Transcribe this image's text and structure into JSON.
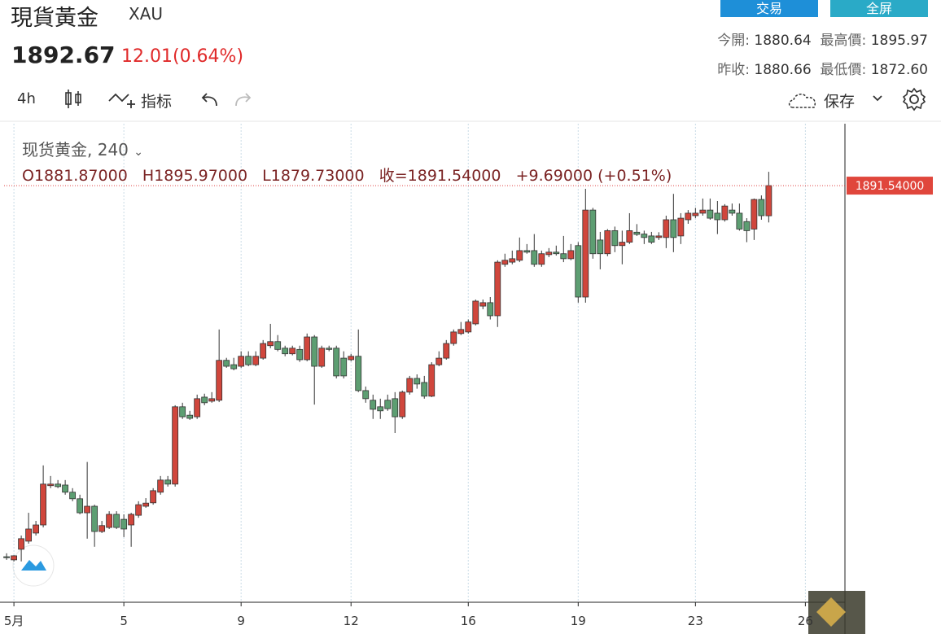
{
  "header": {
    "title": "現貨黃金",
    "symbol": "XAU",
    "price": "1892.67",
    "change": "12.01(0.64%)",
    "trade_button": "交易",
    "fullscreen_button": "全屏"
  },
  "quote": {
    "open_label": "今開:",
    "open": "1880.64",
    "high_label": "最高價:",
    "high": "1895.97",
    "prev_close_label": "昨收:",
    "prev_close": "1880.66",
    "low_label": "最低價:",
    "low": "1872.60"
  },
  "toolbar": {
    "interval": "4h",
    "indicators": "指标",
    "save": "保存"
  },
  "chart_data": {
    "type": "candlestick",
    "title": "现货黄金, 240",
    "legend_open": "O1881.87000",
    "legend_high": "H1895.97000",
    "legend_low": "L1879.73000",
    "legend_close": "收=1891.54000",
    "legend_change": "+9.69000 (+0.51%)",
    "price_label": "1891.54000",
    "up_color": "#d0463c",
    "down_color": "#5d9e72",
    "grid": true,
    "xlim": [
      -0.9,
      114.4
    ],
    "ylim": [
      1757.9,
      1911.4
    ],
    "xticks": [
      {
        "value": 1,
        "label": "5月"
      },
      {
        "value": 16,
        "label": "5"
      },
      {
        "value": 32,
        "label": "9"
      },
      {
        "value": 47,
        "label": "12"
      },
      {
        "value": 63,
        "label": "16"
      },
      {
        "value": 78,
        "label": "19"
      },
      {
        "value": 94,
        "label": "23"
      },
      {
        "value": 109,
        "label": "26"
      }
    ],
    "open": [
      1772.5,
      1771.5,
      1774.9,
      1777.5,
      1780.1,
      1782.7,
      1795.3,
      1795.8,
      1795.5,
      1793.2,
      1791.1,
      1786.6,
      1788.7,
      1780.6,
      1781.9,
      1786.1,
      1784.5,
      1782.7,
      1785.8,
      1788.7,
      1789.8,
      1793.2,
      1797.1,
      1795.8,
      1820.6,
      1817.9,
      1817.4,
      1823.7,
      1822.4,
      1822.7,
      1835.5,
      1834.1,
      1833.6,
      1836.8,
      1834.1,
      1836.2,
      1840.2,
      1841.5,
      1839.4,
      1837.6,
      1839.0,
      1835.7,
      1843.0,
      1833.6,
      1839.4,
      1839.4,
      1836.2,
      1835.7,
      1836.8,
      1825.8,
      1822.7,
      1820.6,
      1822.7,
      1823.2,
      1817.4,
      1825.3,
      1829.7,
      1828.4,
      1824.0,
      1834.1,
      1836.2,
      1840.9,
      1844.1,
      1844.6,
      1847.2,
      1852.9,
      1854.0,
      1849.8,
      1866.3,
      1867.0,
      1867.6,
      1870.7,
      1870.7,
      1866.3,
      1869.4,
      1870.2,
      1869.7,
      1868.1,
      1872.3,
      1855.8,
      1883.7,
      1874.1,
      1869.7,
      1877.1,
      1872.3,
      1873.4,
      1876.6,
      1876.0,
      1875.4,
      1874.9,
      1874.9,
      1880.6,
      1875.4,
      1880.6,
      1881.9,
      1882.7,
      1883.7,
      1882.7,
      1880.6,
      1883.7,
      1882.7,
      1880.0,
      1877.6,
      1887.1,
      1881.87
    ],
    "high": [
      1773.6,
      1773.0,
      1779.3,
      1786.6,
      1784.0,
      1801.8,
      1798.4,
      1797.1,
      1797.1,
      1794.5,
      1792.4,
      1802.9,
      1789.2,
      1784.0,
      1787.1,
      1787.1,
      1786.1,
      1786.6,
      1790.3,
      1791.3,
      1794.5,
      1798.4,
      1798.4,
      1821.1,
      1821.9,
      1819.3,
      1824.5,
      1824.8,
      1825.3,
      1845.4,
      1836.3,
      1836.3,
      1838.4,
      1838.4,
      1838.4,
      1842.0,
      1847.2,
      1843.6,
      1840.2,
      1840.2,
      1840.2,
      1844.1,
      1843.6,
      1840.2,
      1840.2,
      1840.2,
      1838.4,
      1837.6,
      1845.4,
      1827.1,
      1824.5,
      1823.2,
      1824.5,
      1825.3,
      1825.8,
      1830.5,
      1831.0,
      1830.5,
      1834.9,
      1838.4,
      1842.0,
      1845.4,
      1847.8,
      1848.6,
      1855.0,
      1855.0,
      1855.8,
      1867.6,
      1869.7,
      1870.7,
      1874.9,
      1872.8,
      1876.0,
      1870.7,
      1871.5,
      1872.3,
      1875.4,
      1872.8,
      1873.4,
      1890.5,
      1884.4,
      1876.7,
      1877.6,
      1878.4,
      1877.1,
      1882.7,
      1879.2,
      1877.1,
      1876.7,
      1876.6,
      1881.9,
      1888.9,
      1882.7,
      1883.7,
      1884.4,
      1887.4,
      1887.4,
      1886.6,
      1885.6,
      1885.8,
      1885.8,
      1881.1,
      1887.4,
      1888.4,
      1895.97
    ],
    "low": [
      1771.5,
      1771.0,
      1771.0,
      1776.7,
      1779.3,
      1781.9,
      1794.5,
      1794.5,
      1792.4,
      1790.3,
      1786.1,
      1778.3,
      1775.7,
      1780.1,
      1781.4,
      1781.4,
      1778.8,
      1775.7,
      1785.0,
      1788.2,
      1789.2,
      1792.4,
      1795.0,
      1795.0,
      1816.7,
      1816.4,
      1816.7,
      1821.1,
      1821.9,
      1822.1,
      1833.1,
      1832.3,
      1833.1,
      1833.6,
      1833.6,
      1835.7,
      1839.4,
      1838.4,
      1836.8,
      1837.1,
      1835.0,
      1835.2,
      1821.3,
      1833.1,
      1838.4,
      1829.7,
      1829.7,
      1835.2,
      1825.3,
      1821.9,
      1816.7,
      1816.7,
      1819.3,
      1812.2,
      1816.7,
      1824.5,
      1826.4,
      1823.2,
      1823.7,
      1833.6,
      1835.7,
      1840.2,
      1843.6,
      1844.1,
      1846.7,
      1851.9,
      1848.6,
      1846.2,
      1865.5,
      1866.3,
      1867.0,
      1869.7,
      1865.5,
      1865.5,
      1868.6,
      1869.1,
      1867.0,
      1867.6,
      1854.0,
      1854.0,
      1868.1,
      1864.7,
      1868.9,
      1870.2,
      1866.3,
      1872.8,
      1875.4,
      1872.8,
      1872.8,
      1874.1,
      1871.5,
      1870.2,
      1872.8,
      1879.3,
      1881.1,
      1881.9,
      1880.6,
      1876.0,
      1880.0,
      1881.9,
      1877.1,
      1873.4,
      1874.1,
      1880.6,
      1879.73
    ],
    "close": [
      1772.2,
      1772.8,
      1778.3,
      1781.4,
      1782.7,
      1795.8,
      1795.8,
      1795.0,
      1793.2,
      1791.1,
      1786.6,
      1788.7,
      1780.6,
      1782.5,
      1786.1,
      1781.9,
      1781.4,
      1786.1,
      1789.2,
      1789.7,
      1793.7,
      1797.1,
      1795.8,
      1820.6,
      1817.4,
      1816.9,
      1823.2,
      1821.9,
      1823.2,
      1835.5,
      1833.6,
      1832.8,
      1836.8,
      1834.1,
      1836.8,
      1840.9,
      1841.5,
      1839.0,
      1837.6,
      1839.4,
      1835.7,
      1843.0,
      1833.6,
      1839.4,
      1839.0,
      1830.5,
      1830.5,
      1836.8,
      1825.8,
      1823.2,
      1819.8,
      1819.3,
      1820.0,
      1817.4,
      1825.3,
      1829.7,
      1827.9,
      1824.0,
      1834.1,
      1836.2,
      1840.9,
      1844.6,
      1845.4,
      1847.8,
      1854.5,
      1854.0,
      1849.8,
      1867.0,
      1867.6,
      1868.1,
      1870.7,
      1870.2,
      1866.3,
      1869.7,
      1870.2,
      1869.7,
      1868.1,
      1870.7,
      1855.8,
      1883.7,
      1869.7,
      1869.7,
      1877.1,
      1872.3,
      1873.4,
      1877.1,
      1875.9,
      1874.9,
      1873.4,
      1875.4,
      1880.6,
      1874.9,
      1881.1,
      1882.7,
      1882.7,
      1883.7,
      1881.1,
      1880.6,
      1885.0,
      1882.7,
      1877.6,
      1877.1,
      1887.1,
      1881.9,
      1891.54
    ]
  }
}
